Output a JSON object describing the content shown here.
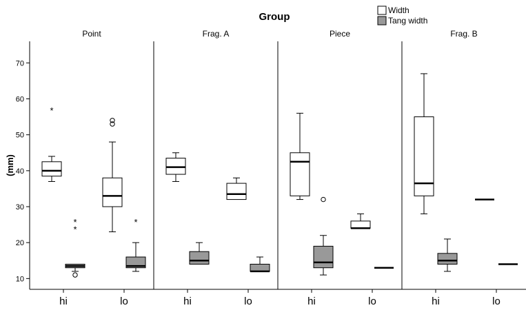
{
  "chart_data": {
    "type": "boxplot",
    "title": "Group",
    "ylabel": "(mm)",
    "ylim": [
      7,
      76
    ],
    "yticks": [
      10,
      20,
      30,
      40,
      50,
      60,
      70
    ],
    "ytick_labels": [
      "10",
      "20",
      "30",
      "40",
      "50",
      "60",
      "70"
    ],
    "legend": {
      "placement": "top-right",
      "entries": [
        {
          "name": "Width",
          "color": "#ffffff"
        },
        {
          "name": "Tang width",
          "color": "#999999"
        }
      ]
    },
    "categories": [
      "hi",
      "lo"
    ],
    "category_labels": [
      "hi",
      "lo",
      "hi",
      "lo",
      "hi",
      "lo",
      "hi",
      "lo"
    ],
    "panels": [
      {
        "name": "Point",
        "groups": [
          {
            "category": "hi",
            "series": "Width",
            "min": 37,
            "q1": 38.5,
            "median": 40,
            "q3": 42.5,
            "max": 44,
            "outliers": [],
            "extremes": [
              57
            ]
          },
          {
            "category": "hi",
            "series": "Tang width",
            "min": 12,
            "q1": 13,
            "median": 13.5,
            "q3": 14,
            "max": 14,
            "outliers": [
              11
            ],
            "extremes": [
              24,
              26
            ]
          },
          {
            "category": "lo",
            "series": "Width",
            "min": 23,
            "q1": 30,
            "median": 33,
            "q3": 38,
            "max": 48,
            "outliers": [
              53,
              54
            ],
            "extremes": []
          },
          {
            "category": "lo",
            "series": "Tang width",
            "min": 12,
            "q1": 13,
            "median": 13.5,
            "q3": 16,
            "max": 20,
            "outliers": [],
            "extremes": [
              26
            ]
          }
        ]
      },
      {
        "name": "Frag. A",
        "groups": [
          {
            "category": "hi",
            "series": "Width",
            "min": 37,
            "q1": 39,
            "median": 41,
            "q3": 43.5,
            "max": 45,
            "outliers": [],
            "extremes": []
          },
          {
            "category": "hi",
            "series": "Tang width",
            "min": 14,
            "q1": 14,
            "median": 15,
            "q3": 17.5,
            "max": 20,
            "outliers": [],
            "extremes": []
          },
          {
            "category": "lo",
            "series": "Width",
            "min": 32,
            "q1": 32,
            "median": 33.5,
            "q3": 36.5,
            "max": 38,
            "outliers": [],
            "extremes": []
          },
          {
            "category": "lo",
            "series": "Tang width",
            "min": 12,
            "q1": 12,
            "median": 12,
            "q3": 14,
            "max": 16,
            "outliers": [],
            "extremes": []
          }
        ]
      },
      {
        "name": "Piece",
        "groups": [
          {
            "category": "hi",
            "series": "Width",
            "min": 32,
            "q1": 33,
            "median": 42.5,
            "q3": 45,
            "max": 56,
            "outliers": [],
            "extremes": []
          },
          {
            "category": "hi",
            "series": "Tang width",
            "min": 11,
            "q1": 13,
            "median": 14.5,
            "q3": 19,
            "max": 22,
            "outliers": [
              32
            ],
            "extremes": []
          },
          {
            "category": "lo",
            "series": "Width",
            "min": 24,
            "q1": 24,
            "median": 24,
            "q3": 26,
            "max": 28,
            "outliers": [],
            "extremes": []
          },
          {
            "category": "lo",
            "series": "Tang width",
            "min": 13,
            "q1": 13,
            "median": 13,
            "q3": 13,
            "max": 13,
            "outliers": [],
            "extremes": []
          }
        ]
      },
      {
        "name": "Frag. B",
        "groups": [
          {
            "category": "hi",
            "series": "Width",
            "min": 28,
            "q1": 33,
            "median": 36.5,
            "q3": 55,
            "max": 67,
            "outliers": [],
            "extremes": []
          },
          {
            "category": "hi",
            "series": "Tang width",
            "min": 12,
            "q1": 14,
            "median": 15,
            "q3": 17,
            "max": 21,
            "outliers": [],
            "extremes": []
          },
          {
            "category": "lo",
            "series": "Width",
            "min": 32,
            "q1": 32,
            "median": 32,
            "q3": 32,
            "max": 32,
            "outliers": [],
            "extremes": []
          },
          {
            "category": "lo",
            "series": "Tang width",
            "min": 14,
            "q1": 14,
            "median": 14,
            "q3": 14,
            "max": 14,
            "outliers": [],
            "extremes": []
          }
        ]
      }
    ]
  }
}
